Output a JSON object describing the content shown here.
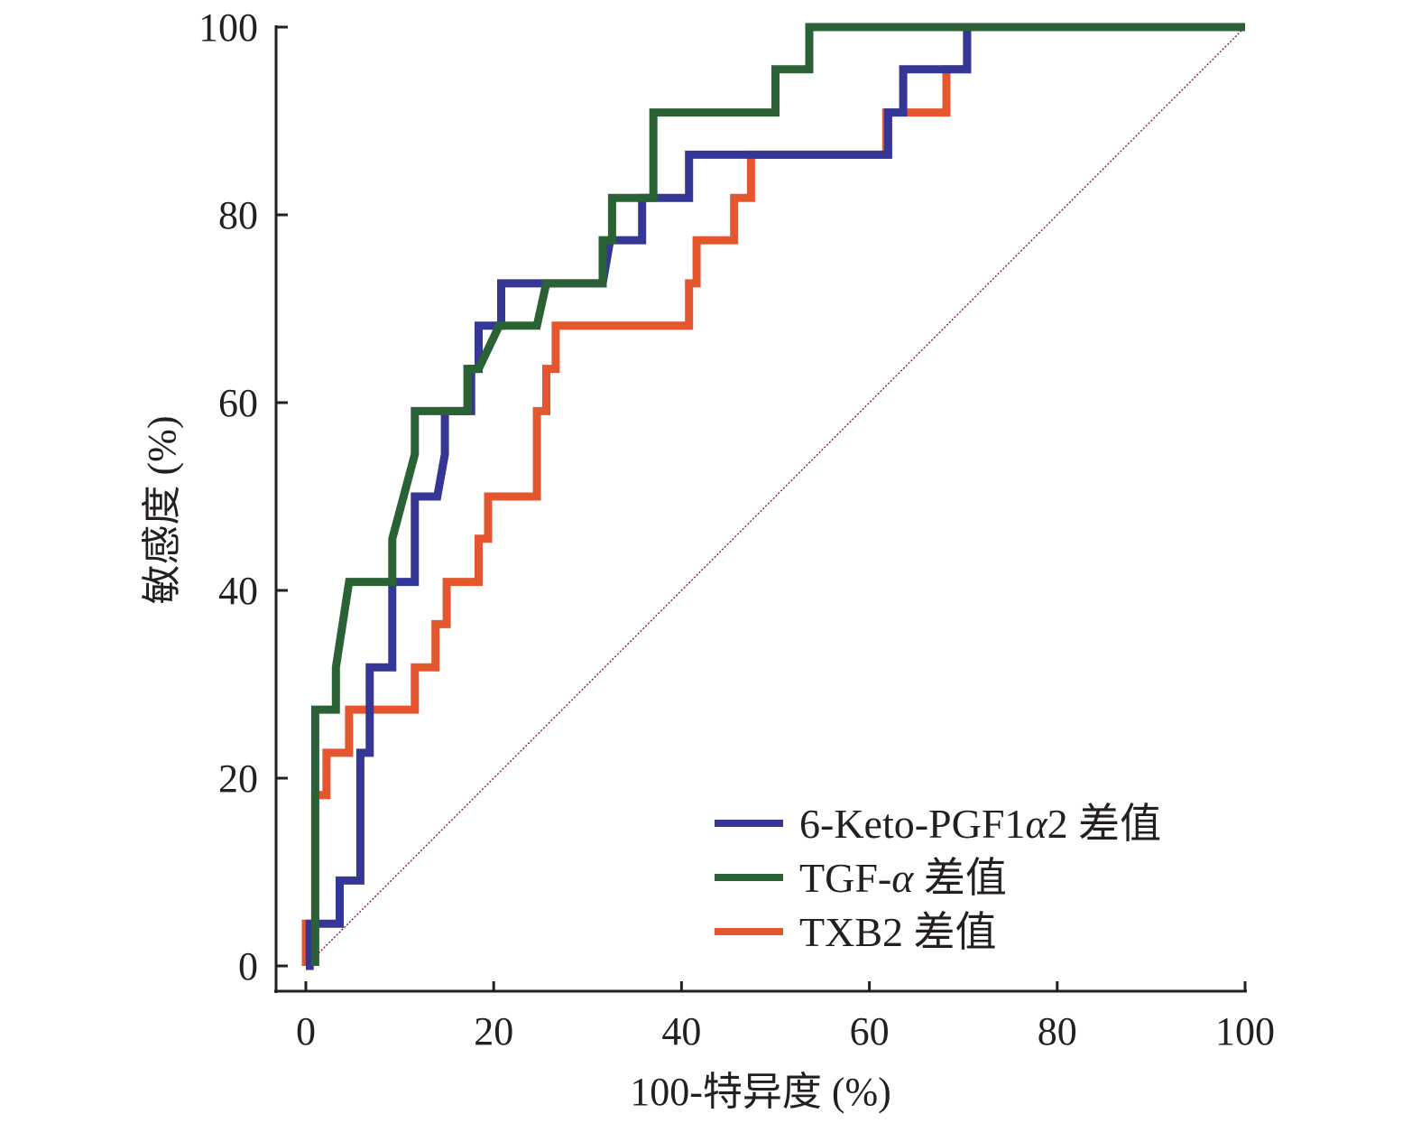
{
  "chart_data": {
    "type": "line",
    "title": "",
    "xlabel": "100-特异度 (%)",
    "ylabel": "敏感度 (%)",
    "xlim": [
      0,
      100
    ],
    "ylim": [
      0,
      100
    ],
    "xticks": [
      0,
      20,
      40,
      60,
      80,
      100
    ],
    "yticks": [
      0,
      20,
      40,
      60,
      80,
      100
    ],
    "grid": false,
    "legend_position": "bottom-right",
    "reference_line": {
      "name": "diagonal",
      "x": [
        0,
        100
      ],
      "y": [
        0,
        100
      ],
      "color": "#8b1a3a",
      "style": "dotted"
    },
    "series": [
      {
        "name": "6-Keto-PGF1α2 差值",
        "legend_parts": [
          "6-Keto-PGF1",
          "α",
          "2 差值"
        ],
        "color": "#343795",
        "x": [
          0.0,
          0.0,
          0.4,
          0.4,
          3.6,
          3.6,
          5.8,
          5.8,
          6.8,
          6.8,
          9.2,
          9.2,
          11.6,
          11.6,
          14.0,
          14.8,
          14.8,
          17.6,
          17.6,
          18.4,
          18.4,
          20.8,
          20.8,
          25.6,
          31.6,
          32.4,
          32.4,
          35.8,
          35.8,
          40.8,
          40.8,
          62.0,
          62.0,
          63.6,
          63.6,
          68.2,
          68.2,
          70.4,
          70.4,
          100.0
        ],
        "y": [
          0.0,
          0.0,
          0.0,
          4.5,
          4.5,
          9.1,
          9.1,
          22.7,
          22.7,
          31.8,
          31.8,
          40.9,
          40.9,
          50.0,
          50.0,
          54.5,
          59.1,
          59.1,
          63.6,
          63.6,
          68.2,
          68.2,
          72.7,
          72.7,
          72.7,
          77.3,
          77.3,
          77.3,
          81.8,
          81.8,
          86.4,
          86.4,
          90.9,
          90.9,
          95.5,
          95.5,
          95.5,
          95.5,
          100.0,
          100.0
        ]
      },
      {
        "name": "TGF-α 差值",
        "legend_parts": [
          "TGF-",
          "α",
          " 差值"
        ],
        "color": "#2a6135",
        "x": [
          1.0,
          1.0,
          1.0,
          3.2,
          3.2,
          4.6,
          9.2,
          9.2,
          11.6,
          11.6,
          17.2,
          17.2,
          18.4,
          20.6,
          24.6,
          25.6,
          31.6,
          31.6,
          32.6,
          32.6,
          37.0,
          37.0,
          50.0,
          50.0,
          53.6,
          53.6,
          70.4,
          100.0
        ],
        "y": [
          0.0,
          18.2,
          27.3,
          27.3,
          31.8,
          40.9,
          40.9,
          45.5,
          54.5,
          59.1,
          59.1,
          63.6,
          63.6,
          68.2,
          68.2,
          72.7,
          72.7,
          77.3,
          77.3,
          81.8,
          81.8,
          90.9,
          90.9,
          95.5,
          95.5,
          100.0,
          100.0,
          100.0
        ]
      },
      {
        "name": "TXB2 差值",
        "legend_parts": [
          "TXB2",
          "",
          " 差值"
        ],
        "color": "#e4572e",
        "x": [
          0.0,
          0.0,
          1.0,
          1.0,
          2.2,
          2.2,
          4.6,
          4.6,
          11.6,
          11.6,
          13.8,
          13.8,
          15.0,
          15.0,
          18.4,
          18.4,
          19.4,
          19.4,
          24.6,
          24.6,
          25.6,
          25.6,
          26.6,
          26.6,
          40.8,
          40.8,
          41.6,
          41.6,
          45.6,
          45.6,
          47.4,
          47.4,
          61.8,
          61.8,
          68.2,
          68.2,
          70.4,
          70.4,
          100.0
        ],
        "y": [
          0.0,
          4.5,
          4.5,
          18.2,
          18.2,
          22.7,
          22.7,
          27.3,
          27.3,
          31.8,
          31.8,
          36.4,
          36.4,
          40.9,
          40.9,
          45.5,
          45.5,
          50.0,
          50.0,
          59.1,
          59.1,
          63.6,
          63.6,
          68.2,
          68.2,
          72.7,
          72.7,
          77.3,
          77.3,
          81.8,
          81.8,
          86.4,
          86.4,
          90.9,
          90.9,
          95.5,
          95.5,
          100.0,
          100.0
        ]
      }
    ]
  }
}
